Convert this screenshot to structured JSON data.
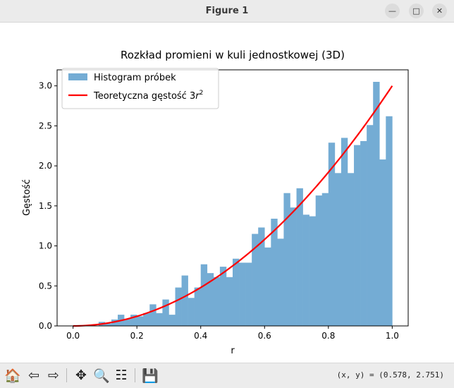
{
  "window": {
    "title": "Figure 1",
    "minimize_glyph": "—",
    "maximize_glyph": "□",
    "close_glyph": "✕"
  },
  "toolbar": {
    "tools": [
      {
        "name": "home-icon",
        "glyph": "🏠"
      },
      {
        "name": "back-icon",
        "glyph": "⇦"
      },
      {
        "name": "forward-icon",
        "glyph": "⇨"
      },
      {
        "name": "pan-icon",
        "glyph": "✥"
      },
      {
        "name": "zoom-icon",
        "glyph": "🔍"
      },
      {
        "name": "configure-subplots-icon",
        "glyph": "☷"
      },
      {
        "name": "save-icon",
        "glyph": "💾"
      }
    ],
    "coords": "(x, y) = (0.578, 2.751)"
  },
  "chart_data": {
    "type": "bar",
    "title": "Rozkład promieni w kuli jednostkowej (3D)",
    "xlabel": "r",
    "ylabel": "Gęstość",
    "xlim": [
      -0.05,
      1.05
    ],
    "ylim": [
      0,
      3.2
    ],
    "xticks": [
      "0.0",
      "0.2",
      "0.4",
      "0.6",
      "0.8",
      "1.0"
    ],
    "yticks": [
      "0.0",
      "0.5",
      "1.0",
      "1.5",
      "2.0",
      "2.5",
      "3.0"
    ],
    "grid": false,
    "legend_position": "upper-left",
    "legend": {
      "histogram_label": "Histogram próbek",
      "curve_label_prefix": "Teoretyczna gęstość 3",
      "curve_label_var": "r",
      "curve_label_exp": "2"
    },
    "histogram": {
      "color": "#74acd4",
      "bin_width": 0.02,
      "bin_starts": [
        0.0,
        0.02,
        0.04,
        0.06,
        0.08,
        0.1,
        0.12,
        0.14,
        0.16,
        0.18,
        0.2,
        0.22,
        0.24,
        0.26,
        0.28,
        0.3,
        0.32,
        0.34,
        0.36,
        0.38,
        0.4,
        0.42,
        0.44,
        0.46,
        0.48,
        0.5,
        0.52,
        0.54,
        0.56,
        0.58,
        0.6,
        0.62,
        0.64,
        0.66,
        0.68,
        0.7,
        0.72,
        0.74,
        0.76,
        0.78,
        0.8,
        0.82,
        0.84,
        0.86,
        0.88,
        0.9,
        0.92,
        0.94,
        0.96,
        0.98
      ],
      "values": [
        0.0,
        0.0,
        0.0,
        0.0,
        0.05,
        0.03,
        0.08,
        0.14,
        0.09,
        0.14,
        0.12,
        0.16,
        0.27,
        0.16,
        0.33,
        0.14,
        0.48,
        0.63,
        0.35,
        0.48,
        0.77,
        0.66,
        0.61,
        0.74,
        0.61,
        0.84,
        0.79,
        0.79,
        1.15,
        1.23,
        0.98,
        1.34,
        1.09,
        1.66,
        1.48,
        1.72,
        1.39,
        1.37,
        1.63,
        1.66,
        2.29,
        1.91,
        2.35,
        1.91,
        2.26,
        2.31,
        2.51,
        3.05,
        2.08,
        2.62
      ]
    },
    "curve": {
      "color": "#ff0000",
      "function": "3r^2",
      "x_range": [
        0,
        1
      ]
    }
  }
}
